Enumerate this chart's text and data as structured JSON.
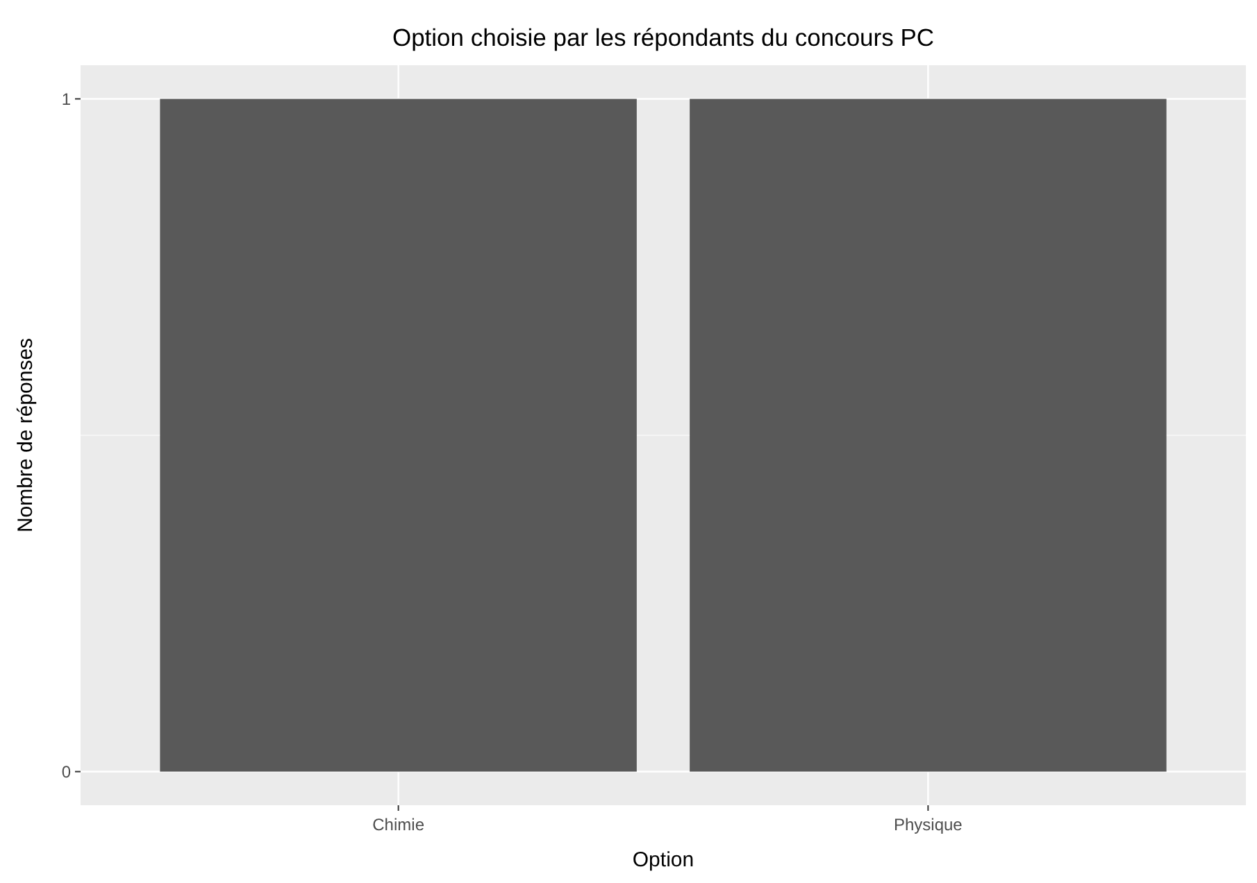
{
  "chart_data": {
    "type": "bar",
    "title": "Option choisie par les répondants du concours PC",
    "xlabel": "Option",
    "ylabel": "Nombre de réponses",
    "categories": [
      "Chimie",
      "Physique"
    ],
    "values": [
      1,
      1
    ],
    "color": "#595959",
    "ylim": [
      -0.05,
      1.05
    ],
    "yticks": [
      0,
      1
    ],
    "grid": true,
    "ref_lines": [
      {
        "axis": "y",
        "value": 0.5,
        "color": "#ffffff"
      }
    ]
  }
}
